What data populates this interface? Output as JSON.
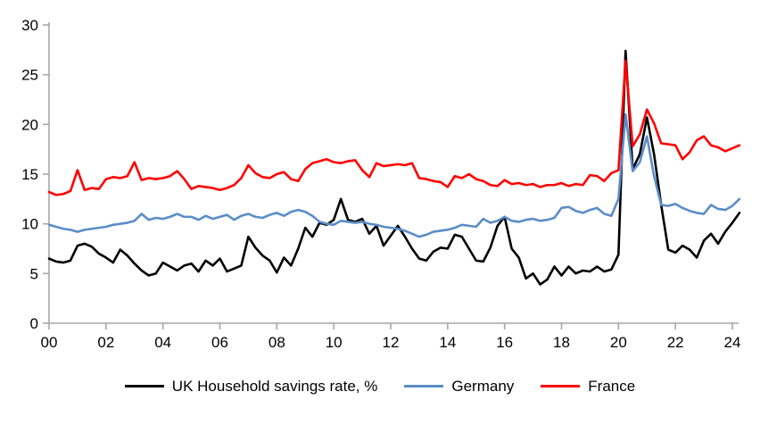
{
  "chart_data": {
    "type": "line",
    "title": "",
    "xlabel": "",
    "ylabel": "",
    "grid": "off",
    "legend_position": "bottom-center",
    "axis_color": "#A6A6A6",
    "text_color": "#000000",
    "background_color": "#FFFFFF",
    "x_axis": {
      "tick_labels": [
        "00",
        "02",
        "04",
        "06",
        "08",
        "10",
        "12",
        "14",
        "16",
        "18",
        "20",
        "22",
        "24"
      ],
      "start_year": 2000,
      "frequency": "quarterly",
      "points_per_year": 4
    },
    "y_axis": {
      "ticks": [
        0,
        5,
        10,
        15,
        20,
        25,
        30
      ],
      "min": 0,
      "max": 30
    },
    "series": [
      {
        "name": "UK Household savings rate, %",
        "color": "#000000",
        "values": [
          6.5,
          6.2,
          6.1,
          6.3,
          7.8,
          8.0,
          7.7,
          7.0,
          6.6,
          6.1,
          7.4,
          6.8,
          6.0,
          5.3,
          4.8,
          5.0,
          6.1,
          5.7,
          5.3,
          5.8,
          6.0,
          5.2,
          6.3,
          5.8,
          6.5,
          5.2,
          5.5,
          5.8,
          8.7,
          7.6,
          6.8,
          6.3,
          5.1,
          6.6,
          5.8,
          7.5,
          9.6,
          8.7,
          10.1,
          9.9,
          10.4,
          12.5,
          10.4,
          10.2,
          10.5,
          9.0,
          9.8,
          7.8,
          8.8,
          9.8,
          8.7,
          7.5,
          6.5,
          6.3,
          7.2,
          7.6,
          7.5,
          8.9,
          8.7,
          7.5,
          6.3,
          6.2,
          7.6,
          9.8,
          10.7,
          7.5,
          6.6,
          4.5,
          5.0,
          3.9,
          4.4,
          5.7,
          4.8,
          5.7,
          5.0,
          5.3,
          5.2,
          5.7,
          5.2,
          5.4,
          6.9,
          27.4,
          15.5,
          17.0,
          20.7,
          17.0,
          11.9,
          7.4,
          7.1,
          7.8,
          7.4,
          6.6,
          8.3,
          9.0,
          8.0,
          9.2,
          10.1,
          11.1
        ]
      },
      {
        "name": "Germany",
        "color": "#5B8DC8",
        "values": [
          9.9,
          9.7,
          9.5,
          9.4,
          9.2,
          9.4,
          9.5,
          9.6,
          9.7,
          9.9,
          10.0,
          10.1,
          10.3,
          11.0,
          10.4,
          10.6,
          10.5,
          10.7,
          11.0,
          10.7,
          10.7,
          10.4,
          10.8,
          10.5,
          10.7,
          10.9,
          10.4,
          10.8,
          11.0,
          10.7,
          10.6,
          10.9,
          11.1,
          10.8,
          11.2,
          11.4,
          11.2,
          10.8,
          10.2,
          10.0,
          9.9,
          10.3,
          10.2,
          10.1,
          10.2,
          10.0,
          9.9,
          9.7,
          9.6,
          9.5,
          9.3,
          9.0,
          8.7,
          8.9,
          9.2,
          9.3,
          9.4,
          9.6,
          9.9,
          9.8,
          9.7,
          10.5,
          10.1,
          10.3,
          10.7,
          10.3,
          10.2,
          10.4,
          10.5,
          10.3,
          10.4,
          10.6,
          11.6,
          11.7,
          11.3,
          11.1,
          11.4,
          11.6,
          11.0,
          10.8,
          12.5,
          21.0,
          15.3,
          16.2,
          18.8,
          14.8,
          11.9,
          11.8,
          12.0,
          11.6,
          11.3,
          11.1,
          11.0,
          11.9,
          11.5,
          11.4,
          11.8,
          12.5
        ]
      },
      {
        "name": "France",
        "color": "#FF0000",
        "values": [
          13.2,
          12.9,
          13.0,
          13.3,
          15.4,
          13.4,
          13.6,
          13.5,
          14.5,
          14.7,
          14.6,
          14.8,
          16.2,
          14.4,
          14.6,
          14.5,
          14.6,
          14.8,
          15.3,
          14.5,
          13.5,
          13.8,
          13.7,
          13.6,
          13.4,
          13.6,
          13.9,
          14.6,
          15.9,
          15.1,
          14.7,
          14.6,
          15.0,
          15.2,
          14.5,
          14.3,
          15.5,
          16.1,
          16.3,
          16.5,
          16.2,
          16.1,
          16.3,
          16.4,
          15.4,
          14.7,
          16.1,
          15.8,
          15.9,
          16.0,
          15.9,
          16.1,
          14.6,
          14.5,
          14.3,
          14.2,
          13.7,
          14.8,
          14.6,
          15.0,
          14.5,
          14.3,
          13.9,
          13.8,
          14.4,
          14.0,
          14.1,
          13.9,
          14.0,
          13.7,
          13.9,
          13.9,
          14.1,
          13.8,
          14.0,
          13.9,
          14.9,
          14.8,
          14.3,
          15.1,
          15.4,
          26.4,
          17.8,
          19.0,
          21.5,
          20.1,
          18.1,
          18.0,
          17.9,
          16.5,
          17.2,
          18.4,
          18.8,
          17.9,
          17.7,
          17.3,
          17.6,
          17.9
        ]
      }
    ]
  }
}
